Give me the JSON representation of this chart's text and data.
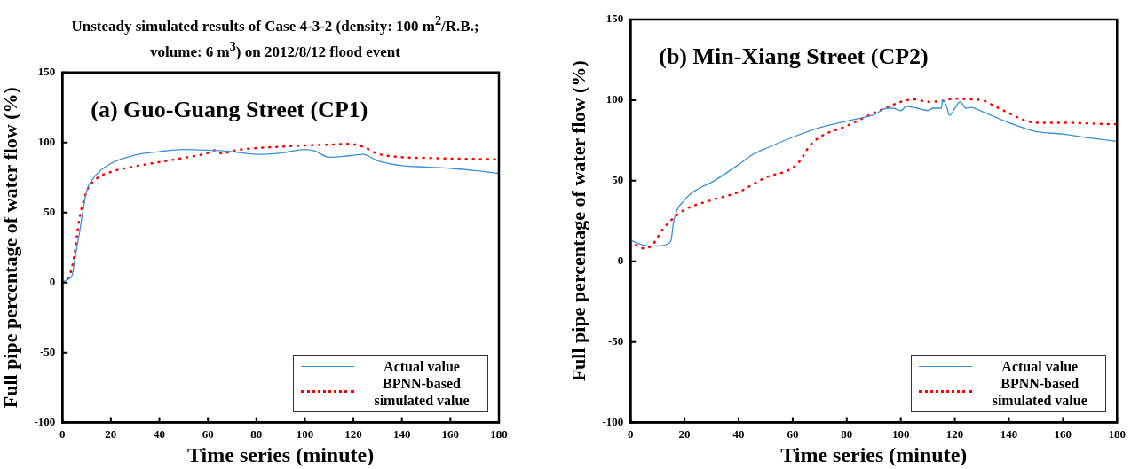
{
  "chart_data": [
    {
      "type": "line",
      "title": "Unsteady simulated results of Case 4-3-2 (density: 100 m$^{2}$/R.B.; volume: 6 m$^{3}$) on 2012/8/12 flood event",
      "xlabel": "Time series (minute)",
      "ylabel": "Full pipe percentage of water flow (%)",
      "annotations": [
        "(a) Guo-Guang Street (CP1)"
      ],
      "xlim": [
        0,
        180
      ],
      "ylim": [
        -100,
        150
      ],
      "xticks": [
        0,
        20,
        40,
        60,
        80,
        100,
        120,
        140,
        160,
        180
      ],
      "yticks": [
        -100,
        -50,
        0,
        50,
        100,
        150
      ],
      "grid": false,
      "legend": "bottom right",
      "marker": "none",
      "series": [
        {
          "name": "Actual value",
          "color": "#3a8fd6",
          "line_style": "solid",
          "x": [
            0,
            2,
            4,
            5,
            7,
            10,
            13,
            20,
            30,
            40,
            50,
            60,
            70,
            80,
            90,
            100,
            104,
            110,
            118,
            124,
            130,
            140,
            150,
            160,
            170,
            180
          ],
          "values": [
            0,
            2,
            5,
            15,
            35,
            65,
            75,
            85,
            91,
            93.5,
            95,
            94.5,
            93.5,
            91.5,
            92.5,
            95,
            94,
            89.5,
            90.5,
            91.5,
            87,
            83.5,
            82.5,
            81.5,
            80,
            78
          ]
        },
        {
          "name": "BPNN-based simulated value",
          "color": "#ff0000",
          "line_style": "dotted",
          "x": [
            0,
            3,
            5,
            7,
            10,
            14,
            20,
            30,
            40,
            50,
            60,
            63,
            66,
            70,
            80,
            90,
            100,
            110,
            118,
            124,
            130,
            140,
            150,
            160,
            180
          ],
          "values": [
            0,
            5,
            20,
            45,
            65,
            74,
            79,
            83,
            86,
            89,
            92.5,
            94.5,
            92,
            94,
            96,
            97,
            98,
            98.5,
            99,
            97,
            92,
            89.5,
            89,
            88.5,
            88
          ]
        }
      ]
    },
    {
      "type": "line",
      "xlabel": "Time series (minute)",
      "ylabel": "Full pipe percentage of water flow (%)",
      "annotations": [
        "(b) Min-Xiang Street (CP2)"
      ],
      "xlim": [
        0,
        180
      ],
      "ylim": [
        -100,
        150
      ],
      "xticks": [
        0,
        20,
        40,
        60,
        80,
        100,
        120,
        140,
        160,
        180
      ],
      "yticks": [
        -100,
        -50,
        0,
        50,
        100,
        150
      ],
      "grid": false,
      "legend": "bottom right",
      "marker": "none",
      "series": [
        {
          "name": "Actual value",
          "color": "#3a8fd6",
          "line_style": "solid",
          "x": [
            0,
            5,
            10,
            14,
            15,
            16,
            20,
            25,
            30,
            40,
            45,
            50,
            60,
            70,
            80,
            90,
            95,
            97,
            100,
            102,
            106,
            110,
            112,
            115,
            115.5,
            117,
            118,
            120,
            122,
            124,
            126,
            130,
            140,
            150,
            160,
            170,
            180
          ],
          "values": [
            13,
            10,
            9.5,
            11,
            13,
            25,
            38,
            45,
            49,
            60,
            66,
            70,
            77,
            83,
            87,
            91,
            95,
            95,
            93.5,
            96,
            95,
            93.5,
            95,
            95,
            100,
            96,
            90.5,
            95,
            99,
            95,
            95.5,
            93,
            86,
            80.5,
            79,
            76.5,
            74.5
          ]
        },
        {
          "name": "BPNN-based simulated value",
          "color": "#ff0000",
          "line_style": "dotted",
          "x": [
            0,
            3,
            5,
            8,
            12,
            16,
            20,
            30,
            40,
            50,
            60,
            63,
            66,
            70,
            80,
            90,
            95,
            100,
            105,
            110,
            115,
            120,
            125,
            130,
            135,
            140,
            145,
            150,
            160,
            170,
            180
          ],
          "values": [
            13,
            9,
            8,
            10,
            20,
            27,
            32,
            38,
            43,
            52,
            58,
            63,
            71,
            77,
            84,
            92,
            95.5,
            99,
            100.5,
            99,
            99.5,
            101,
            100.5,
            100,
            96,
            92,
            88,
            86,
            86,
            85.5,
            85
          ]
        }
      ]
    }
  ]
}
